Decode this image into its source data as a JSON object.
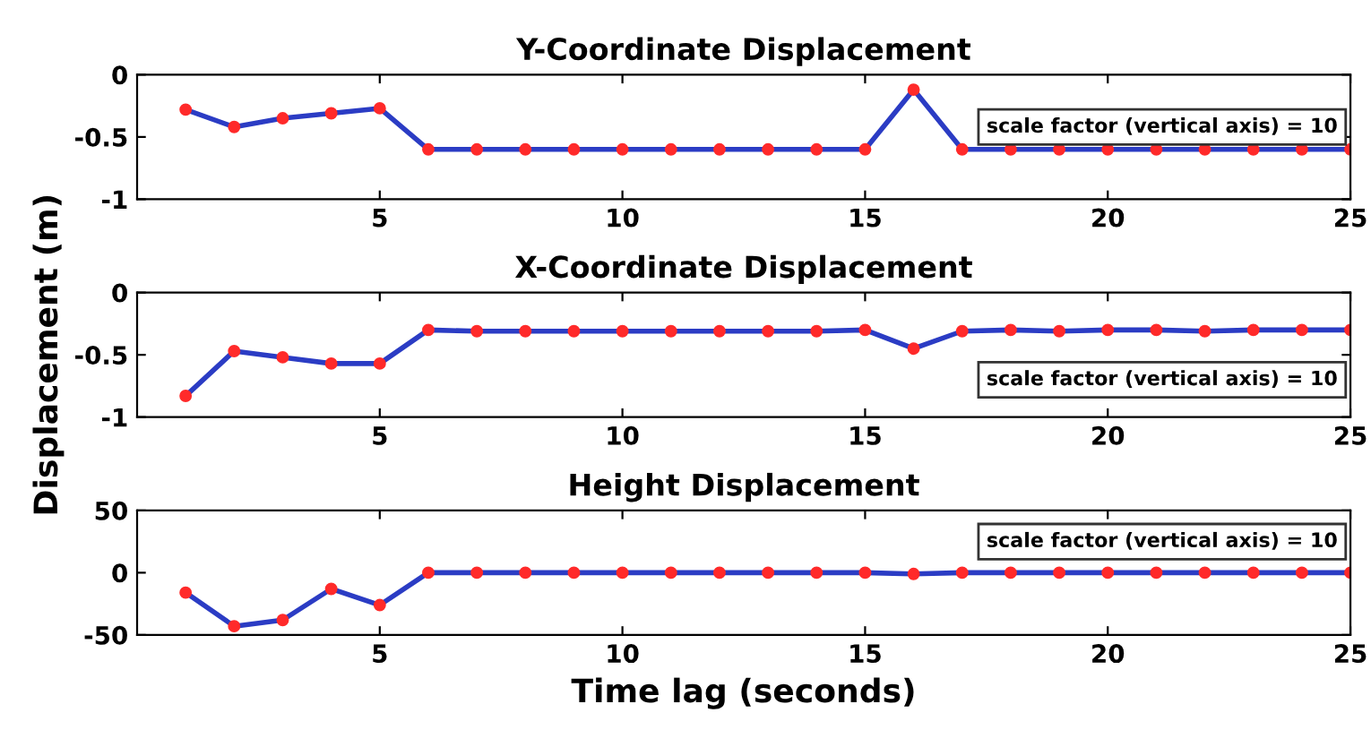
{
  "chart_data": [
    {
      "type": "line",
      "title": "Y-Coordinate Displacement",
      "x": [
        1,
        2,
        3,
        4,
        5,
        6,
        7,
        8,
        9,
        10,
        11,
        12,
        13,
        14,
        15,
        16,
        17,
        18,
        19,
        20,
        21,
        22,
        23,
        24,
        25
      ],
      "series": [
        {
          "color": "#2b3cc4",
          "values": [
            -0.28,
            -0.42,
            -0.35,
            -0.31,
            -0.27,
            -0.6,
            -0.6,
            -0.6,
            -0.6,
            -0.6,
            -0.6,
            -0.6,
            -0.6,
            -0.6,
            -0.6,
            -0.12,
            -0.6,
            -0.6,
            -0.6,
            -0.6,
            -0.6,
            -0.6,
            -0.6,
            -0.6,
            -0.6
          ]
        }
      ],
      "xlim": [
        0,
        25
      ],
      "xticks": [
        5,
        10,
        15,
        20,
        25
      ],
      "ylim": [
        -1,
        0
      ],
      "yticks": [
        -1,
        -0.5,
        0
      ],
      "marker": "circle",
      "line_style": "solid",
      "grid": false,
      "annotations": [
        "scale factor (vertical axis) = 10"
      ]
    },
    {
      "type": "line",
      "title": "X-Coordinate Displacement",
      "ylabel": "Displacement (m)",
      "x": [
        1,
        2,
        3,
        4,
        5,
        6,
        7,
        8,
        9,
        10,
        11,
        12,
        13,
        14,
        15,
        16,
        17,
        18,
        19,
        20,
        21,
        22,
        23,
        24,
        25
      ],
      "series": [
        {
          "color": "#2b3cc4",
          "values": [
            -0.83,
            -0.47,
            -0.52,
            -0.57,
            -0.57,
            -0.3,
            -0.31,
            -0.31,
            -0.31,
            -0.31,
            -0.31,
            -0.31,
            -0.31,
            -0.31,
            -0.3,
            -0.45,
            -0.31,
            -0.3,
            -0.31,
            -0.3,
            -0.3,
            -0.31,
            -0.3,
            -0.3,
            -0.3
          ]
        }
      ],
      "xlim": [
        0,
        25
      ],
      "xticks": [
        5,
        10,
        15,
        20,
        25
      ],
      "ylim": [
        -1,
        0
      ],
      "yticks": [
        -1,
        -0.5,
        0
      ],
      "marker": "circle",
      "line_style": "solid",
      "grid": false,
      "annotations": [
        "scale factor (vertical axis) = 10"
      ]
    },
    {
      "type": "line",
      "title": "Height Displacement",
      "xlabel": "Time lag (seconds)",
      "x": [
        1,
        2,
        3,
        4,
        5,
        6,
        7,
        8,
        9,
        10,
        11,
        12,
        13,
        14,
        15,
        16,
        17,
        18,
        19,
        20,
        21,
        22,
        23,
        24,
        25
      ],
      "series": [
        {
          "color": "#2b3cc4",
          "values": [
            -16,
            -43,
            -38,
            -13,
            -26,
            0,
            0,
            0,
            0,
            0,
            0,
            0,
            0,
            0,
            0,
            -1,
            0,
            0,
            0,
            0,
            0,
            0,
            0,
            0,
            0
          ]
        }
      ],
      "xlim": [
        0,
        25
      ],
      "xticks": [
        5,
        10,
        15,
        20,
        25
      ],
      "ylim": [
        -50,
        50
      ],
      "yticks": [
        -50,
        0,
        50
      ],
      "marker": "circle",
      "line_style": "solid",
      "grid": false,
      "annotations": [
        "scale factor (vertical axis) = 10"
      ]
    }
  ]
}
